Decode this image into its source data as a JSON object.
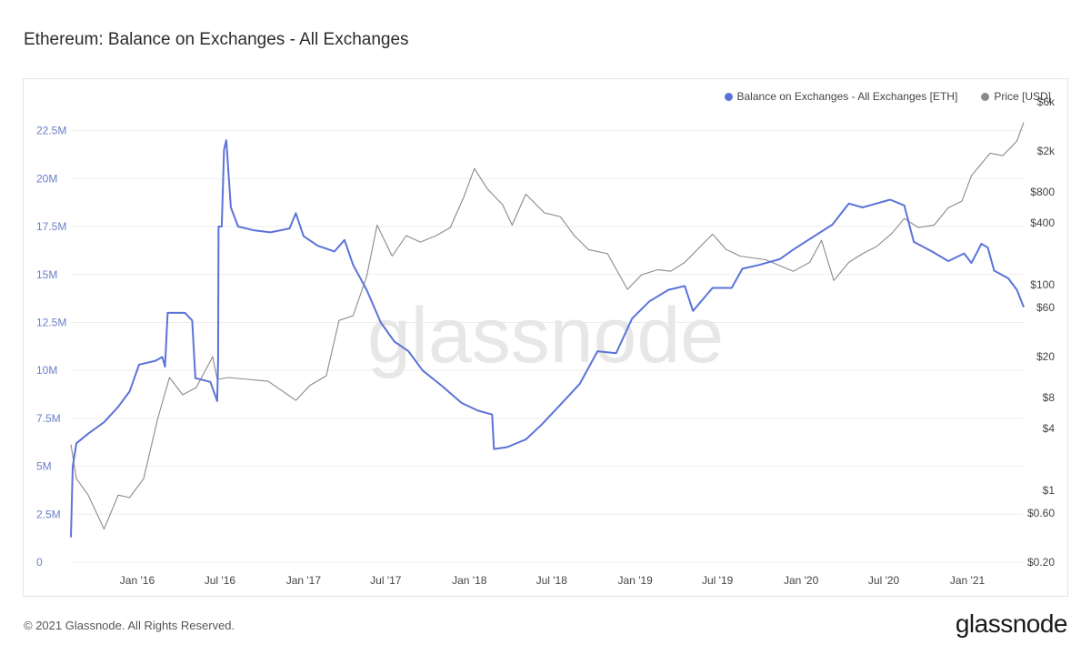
{
  "title": "Ethereum: Balance on Exchanges - All Exchanges",
  "footer": {
    "copyright": "© 2021 Glassnode. All Rights Reserved.",
    "logo": "glassnode"
  },
  "watermark": "glassnode",
  "colors": {
    "balance": "#5b73d8",
    "price": "#8a8a8a",
    "grid": "#eeeeee"
  },
  "chart_data": {
    "type": "line",
    "title": "Ethereum: Balance on Exchanges - All Exchanges",
    "legend_position": "top-right",
    "grid": true,
    "x_range": [
      "2015-08-08",
      "2021-05-05"
    ],
    "x_ticks": [
      {
        "label": "Jan '16",
        "date": "2016-01-01"
      },
      {
        "label": "Jul '16",
        "date": "2016-07-01"
      },
      {
        "label": "Jan '17",
        "date": "2017-01-01"
      },
      {
        "label": "Jul '17",
        "date": "2017-07-01"
      },
      {
        "label": "Jan '18",
        "date": "2018-01-01"
      },
      {
        "label": "Jul '18",
        "date": "2018-07-01"
      },
      {
        "label": "Jan '19",
        "date": "2019-01-01"
      },
      {
        "label": "Jul '19",
        "date": "2019-07-01"
      },
      {
        "label": "Jan '20",
        "date": "2020-01-01"
      },
      {
        "label": "Jul '20",
        "date": "2020-07-01"
      },
      {
        "label": "Jan '21",
        "date": "2021-01-01"
      }
    ],
    "y_left": {
      "range": [
        0,
        24000000
      ],
      "ticks": [
        {
          "label": "0",
          "value": 0
        },
        {
          "label": "2.5M",
          "value": 2500000
        },
        {
          "label": "5M",
          "value": 5000000
        },
        {
          "label": "7.5M",
          "value": 7500000
        },
        {
          "label": "10M",
          "value": 10000000
        },
        {
          "label": "12.5M",
          "value": 12500000
        },
        {
          "label": "15M",
          "value": 15000000
        },
        {
          "label": "17.5M",
          "value": 17500000
        },
        {
          "label": "20M",
          "value": 20000000
        },
        {
          "label": "22.5M",
          "value": 22500000
        }
      ]
    },
    "y_right": {
      "scale": "log",
      "range": [
        0.2,
        6000
      ],
      "ticks": [
        {
          "label": "$0.20",
          "value": 0.2
        },
        {
          "label": "$0.60",
          "value": 0.6
        },
        {
          "label": "$1",
          "value": 1
        },
        {
          "label": "$4",
          "value": 4
        },
        {
          "label": "$8",
          "value": 8
        },
        {
          "label": "$20",
          "value": 20
        },
        {
          "label": "$60",
          "value": 60
        },
        {
          "label": "$100",
          "value": 100
        },
        {
          "label": "$400",
          "value": 400
        },
        {
          "label": "$800",
          "value": 800
        },
        {
          "label": "$2k",
          "value": 2000
        },
        {
          "label": "$6k",
          "value": 6000
        }
      ]
    },
    "series": [
      {
        "name": "Balance on Exchanges - All Exchanges [ETH]",
        "axis": "left",
        "color": "#5b73d8",
        "points": [
          [
            "2015-08-08",
            1300000
          ],
          [
            "2015-08-12",
            5000000
          ],
          [
            "2015-08-20",
            6200000
          ],
          [
            "2015-09-15",
            6700000
          ],
          [
            "2015-10-20",
            7300000
          ],
          [
            "2015-11-20",
            8100000
          ],
          [
            "2015-12-15",
            8900000
          ],
          [
            "2016-01-05",
            10300000
          ],
          [
            "2016-02-10",
            10500000
          ],
          [
            "2016-02-25",
            10700000
          ],
          [
            "2016-03-02",
            10200000
          ],
          [
            "2016-03-08",
            13000000
          ],
          [
            "2016-04-15",
            13000000
          ],
          [
            "2016-05-01",
            12600000
          ],
          [
            "2016-05-08",
            9600000
          ],
          [
            "2016-06-10",
            9400000
          ],
          [
            "2016-06-25",
            8400000
          ],
          [
            "2016-06-27",
            10500000
          ],
          [
            "2016-06-28",
            17500000
          ],
          [
            "2016-07-05",
            17500000
          ],
          [
            "2016-07-10",
            21500000
          ],
          [
            "2016-07-15",
            22000000
          ],
          [
            "2016-07-25",
            18500000
          ],
          [
            "2016-08-10",
            17500000
          ],
          [
            "2016-09-15",
            17300000
          ],
          [
            "2016-10-20",
            17200000
          ],
          [
            "2016-12-01",
            17400000
          ],
          [
            "2016-12-15",
            18200000
          ],
          [
            "2017-01-01",
            17000000
          ],
          [
            "2017-02-01",
            16500000
          ],
          [
            "2017-03-10",
            16200000
          ],
          [
            "2017-04-01",
            16800000
          ],
          [
            "2017-04-20",
            15500000
          ],
          [
            "2017-05-20",
            14200000
          ],
          [
            "2017-06-20",
            12500000
          ],
          [
            "2017-07-20",
            11500000
          ],
          [
            "2017-08-20",
            11000000
          ],
          [
            "2017-09-20",
            10000000
          ],
          [
            "2017-11-01",
            9200000
          ],
          [
            "2017-12-15",
            8300000
          ],
          [
            "2018-01-20",
            7900000
          ],
          [
            "2018-02-20",
            7700000
          ],
          [
            "2018-02-24",
            5900000
          ],
          [
            "2018-03-25",
            6000000
          ],
          [
            "2018-05-05",
            6400000
          ],
          [
            "2018-06-10",
            7200000
          ],
          [
            "2018-07-20",
            8200000
          ],
          [
            "2018-09-01",
            9300000
          ],
          [
            "2018-10-10",
            11000000
          ],
          [
            "2018-11-20",
            10900000
          ],
          [
            "2018-12-25",
            12700000
          ],
          [
            "2019-02-01",
            13600000
          ],
          [
            "2019-03-15",
            14200000
          ],
          [
            "2019-04-20",
            14400000
          ],
          [
            "2019-05-08",
            13100000
          ],
          [
            "2019-06-20",
            14300000
          ],
          [
            "2019-08-01",
            14300000
          ],
          [
            "2019-08-25",
            15300000
          ],
          [
            "2019-10-01",
            15500000
          ],
          [
            "2019-11-15",
            15800000
          ],
          [
            "2019-12-15",
            16300000
          ],
          [
            "2020-01-30",
            17000000
          ],
          [
            "2020-03-10",
            17600000
          ],
          [
            "2020-04-15",
            18700000
          ],
          [
            "2020-05-15",
            18500000
          ],
          [
            "2020-06-15",
            18700000
          ],
          [
            "2020-07-15",
            18900000
          ],
          [
            "2020-08-15",
            18600000
          ],
          [
            "2020-09-05",
            16700000
          ],
          [
            "2020-10-15",
            16200000
          ],
          [
            "2020-11-20",
            15700000
          ],
          [
            "2020-12-25",
            16100000
          ],
          [
            "2021-01-10",
            15600000
          ],
          [
            "2021-02-01",
            16600000
          ],
          [
            "2021-02-15",
            16400000
          ],
          [
            "2021-03-01",
            15200000
          ],
          [
            "2021-04-01",
            14800000
          ],
          [
            "2021-04-20",
            14200000
          ],
          [
            "2021-05-05",
            13300000
          ]
        ]
      },
      {
        "name": "Price [USD]",
        "axis": "right",
        "color": "#8a8a8a",
        "points": [
          [
            "2015-08-08",
            2.8
          ],
          [
            "2015-08-20",
            1.3
          ],
          [
            "2015-09-15",
            0.9
          ],
          [
            "2015-10-20",
            0.42
          ],
          [
            "2015-11-20",
            0.9
          ],
          [
            "2015-12-15",
            0.85
          ],
          [
            "2016-01-15",
            1.3
          ],
          [
            "2016-02-15",
            5.0
          ],
          [
            "2016-03-12",
            12.5
          ],
          [
            "2016-04-10",
            8.5
          ],
          [
            "2016-05-10",
            10.0
          ],
          [
            "2016-06-15",
            20.0
          ],
          [
            "2016-06-25",
            12.0
          ],
          [
            "2016-07-20",
            12.5
          ],
          [
            "2016-09-01",
            12.0
          ],
          [
            "2016-10-15",
            11.5
          ],
          [
            "2016-12-15",
            7.5
          ],
          [
            "2017-01-15",
            10.5
          ],
          [
            "2017-02-20",
            13.0
          ],
          [
            "2017-03-20",
            45.0
          ],
          [
            "2017-04-20",
            50.0
          ],
          [
            "2017-05-20",
            120.0
          ],
          [
            "2017-06-12",
            380.0
          ],
          [
            "2017-07-15",
            190.0
          ],
          [
            "2017-08-15",
            300.0
          ],
          [
            "2017-09-15",
            260.0
          ],
          [
            "2017-10-20",
            300.0
          ],
          [
            "2017-11-20",
            360.0
          ],
          [
            "2017-12-20",
            720.0
          ],
          [
            "2018-01-12",
            1350.0
          ],
          [
            "2018-02-10",
            850.0
          ],
          [
            "2018-03-15",
            600.0
          ],
          [
            "2018-04-05",
            380.0
          ],
          [
            "2018-05-05",
            760.0
          ],
          [
            "2018-06-15",
            500.0
          ],
          [
            "2018-07-20",
            460.0
          ],
          [
            "2018-08-20",
            300.0
          ],
          [
            "2018-09-20",
            220.0
          ],
          [
            "2018-11-01",
            200.0
          ],
          [
            "2018-12-15",
            90.0
          ],
          [
            "2019-01-15",
            125.0
          ],
          [
            "2019-02-20",
            140.0
          ],
          [
            "2019-03-20",
            135.0
          ],
          [
            "2019-04-20",
            165.0
          ],
          [
            "2019-06-20",
            310.0
          ],
          [
            "2019-07-20",
            220.0
          ],
          [
            "2019-08-20",
            190.0
          ],
          [
            "2019-10-15",
            175.0
          ],
          [
            "2019-12-15",
            135.0
          ],
          [
            "2020-01-20",
            165.0
          ],
          [
            "2020-02-15",
            270.0
          ],
          [
            "2020-03-13",
            110.0
          ],
          [
            "2020-04-15",
            165.0
          ],
          [
            "2020-05-15",
            200.0
          ],
          [
            "2020-06-15",
            235.0
          ],
          [
            "2020-07-20",
            320.0
          ],
          [
            "2020-08-15",
            440.0
          ],
          [
            "2020-09-15",
            360.0
          ],
          [
            "2020-10-20",
            380.0
          ],
          [
            "2020-11-20",
            560.0
          ],
          [
            "2020-12-20",
            650.0
          ],
          [
            "2021-01-10",
            1150.0
          ],
          [
            "2021-02-20",
            1900.0
          ],
          [
            "2021-03-20",
            1800.0
          ],
          [
            "2021-04-20",
            2500.0
          ],
          [
            "2021-05-05",
            3800.0
          ]
        ]
      }
    ]
  }
}
